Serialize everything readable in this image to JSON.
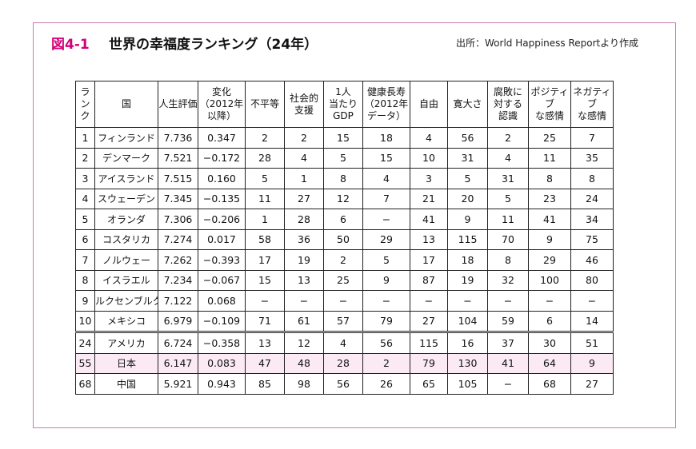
{
  "figure": {
    "label": "図4-1",
    "title": "世界の幸福度ランキング（24年）",
    "source": "出所：World Happiness Reportより作成"
  },
  "table": {
    "headers": [
      [
        "ラ",
        "ン",
        "ク"
      ],
      [
        "国"
      ],
      [
        "人生評価"
      ],
      [
        "変化",
        "（2012年",
        "以降）"
      ],
      [
        "不平等"
      ],
      [
        "社会的",
        "支援"
      ],
      [
        "1人",
        "当たり",
        "GDP"
      ],
      [
        "健康長寿",
        "（2012年",
        "データ）"
      ],
      [
        "自由"
      ],
      [
        "寛大さ"
      ],
      [
        "腐敗に",
        "対する",
        "認識"
      ],
      [
        "ポジティブ",
        "な感情"
      ],
      [
        "ネガティブ",
        "な感情"
      ]
    ],
    "rows": [
      [
        "1",
        "フィンランド",
        "7.736",
        "0.347",
        "2",
        "2",
        "15",
        "18",
        "4",
        "56",
        "2",
        "25",
        "7"
      ],
      [
        "2",
        "デンマーク",
        "7.521",
        "−0.172",
        "28",
        "4",
        "5",
        "15",
        "10",
        "31",
        "4",
        "11",
        "35"
      ],
      [
        "3",
        "アイスランド",
        "7.515",
        "0.160",
        "5",
        "1",
        "8",
        "4",
        "3",
        "5",
        "31",
        "8",
        "8"
      ],
      [
        "4",
        "スウェーデン",
        "7.345",
        "−0.135",
        "11",
        "27",
        "12",
        "7",
        "21",
        "20",
        "5",
        "23",
        "24"
      ],
      [
        "5",
        "オランダ",
        "7.306",
        "−0.206",
        "1",
        "28",
        "6",
        "−",
        "41",
        "9",
        "11",
        "41",
        "34"
      ],
      [
        "6",
        "コスタリカ",
        "7.274",
        "0.017",
        "58",
        "36",
        "50",
        "29",
        "13",
        "115",
        "70",
        "9",
        "75"
      ],
      [
        "7",
        "ノルウェー",
        "7.262",
        "−0.393",
        "17",
        "19",
        "2",
        "5",
        "17",
        "18",
        "8",
        "29",
        "46"
      ],
      [
        "8",
        "イスラエル",
        "7.234",
        "−0.067",
        "15",
        "13",
        "25",
        "9",
        "87",
        "19",
        "32",
        "100",
        "80"
      ],
      [
        "9",
        "ルクセンブルク",
        "7.122",
        "0.068",
        "−",
        "−",
        "−",
        "−",
        "−",
        "−",
        "−",
        "−",
        "−"
      ],
      [
        "10",
        "メキシコ",
        "6.979",
        "−0.109",
        "71",
        "61",
        "57",
        "79",
        "27",
        "104",
        "59",
        "6",
        "14"
      ],
      [
        "24",
        "アメリカ",
        "6.724",
        "−0.358",
        "13",
        "12",
        "4",
        "56",
        "115",
        "16",
        "37",
        "30",
        "51"
      ],
      [
        "55",
        "日本",
        "6.147",
        "0.083",
        "47",
        "48",
        "28",
        "2",
        "79",
        "130",
        "41",
        "64",
        "9"
      ],
      [
        "68",
        "中国",
        "5.921",
        "0.943",
        "85",
        "98",
        "56",
        "26",
        "65",
        "105",
        "−",
        "68",
        "27"
      ]
    ],
    "highlight_row": 11,
    "highlight_color": "#fbe9f3",
    "accent_color": "#d4007a"
  }
}
